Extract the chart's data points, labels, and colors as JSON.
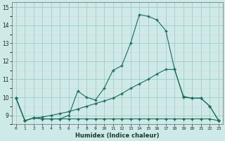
{
  "title": "",
  "xlabel": "Humidex (Indice chaleur)",
  "background_color": "#ceeae8",
  "grid_color": "#aacfcd",
  "line_color": "#1a6b5a",
  "ylim": [
    8.5,
    15.3
  ],
  "xlim": [
    -0.5,
    23.5
  ],
  "yticks": [
    9,
    10,
    11,
    12,
    13,
    14,
    15
  ],
  "xticks": [
    0,
    1,
    2,
    3,
    4,
    5,
    6,
    7,
    8,
    9,
    10,
    11,
    12,
    13,
    14,
    15,
    16,
    17,
    18,
    19,
    20,
    21,
    22,
    23
  ],
  "series": [
    [
      9.95,
      8.7,
      8.85,
      8.8,
      8.8,
      8.8,
      9.0,
      10.35,
      10.0,
      9.85,
      10.5,
      11.5,
      11.75,
      13.0,
      14.6,
      14.5,
      14.3,
      13.7,
      11.55,
      10.05,
      9.95,
      9.95,
      9.5,
      8.7
    ],
    [
      9.95,
      8.7,
      8.85,
      8.8,
      8.8,
      8.8,
      8.8,
      8.8,
      8.8,
      8.8,
      8.8,
      8.8,
      8.8,
      8.8,
      8.8,
      8.8,
      8.8,
      8.8,
      8.8,
      8.8,
      8.8,
      8.8,
      8.8,
      8.7
    ],
    [
      9.95,
      8.7,
      8.85,
      8.9,
      9.0,
      9.1,
      9.2,
      9.35,
      9.5,
      9.65,
      9.8,
      9.95,
      10.2,
      10.5,
      10.75,
      11.0,
      11.3,
      11.55,
      11.55,
      10.0,
      9.95,
      9.95,
      9.5,
      8.7
    ]
  ]
}
